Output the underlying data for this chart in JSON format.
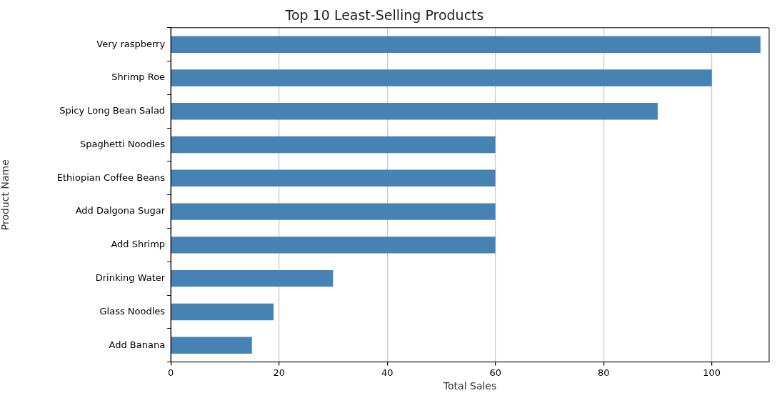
{
  "chart_data": {
    "type": "bar",
    "orientation": "horizontal",
    "title": "Top 10 Least-Selling Products",
    "xlabel": "Total Sales",
    "ylabel": "Product Name",
    "categories": [
      "Very raspberry",
      "Shrimp Roe",
      "Spicy Long Bean Salad",
      "Spaghetti Noodles",
      "Ethiopian Coffee Beans",
      "Add Dalgona Sugar",
      "Add Shrimp",
      "Drinking Water",
      "Glass Noodles",
      "Add Banana"
    ],
    "values": [
      109,
      100,
      90,
      60,
      60,
      60,
      60,
      30,
      19,
      15
    ],
    "color": "#4682b4",
    "xlim": [
      0,
      110.6
    ],
    "xticks": [
      0,
      20,
      40,
      60,
      80,
      100
    ],
    "grid": "x",
    "legend": false
  }
}
